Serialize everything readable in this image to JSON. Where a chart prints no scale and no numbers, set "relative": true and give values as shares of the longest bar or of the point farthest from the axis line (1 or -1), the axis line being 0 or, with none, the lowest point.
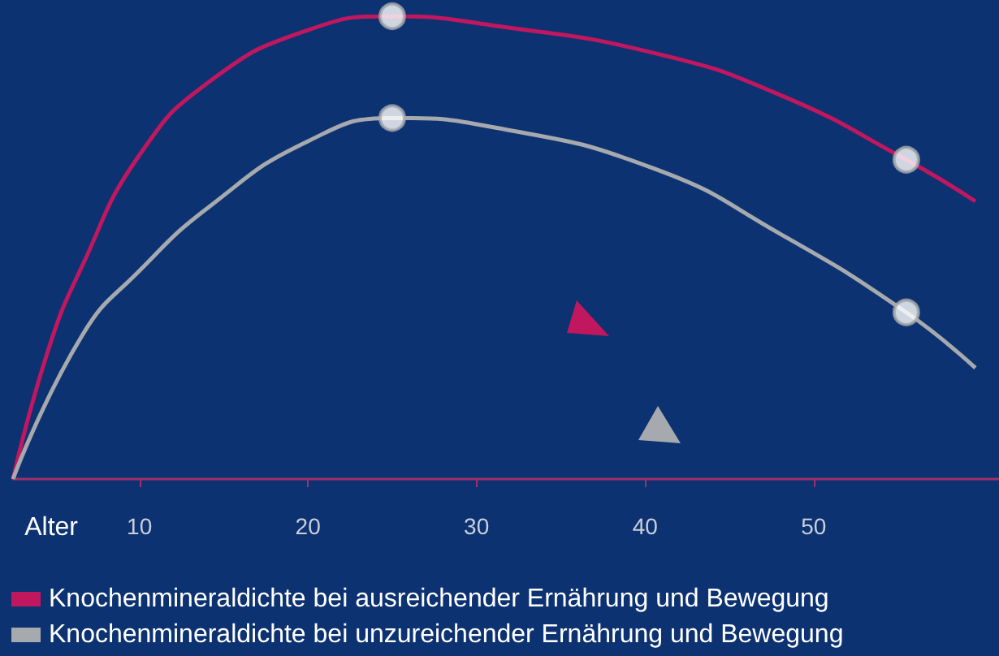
{
  "chart_data": {
    "type": "line",
    "relative": true,
    "xlabel": "Alter",
    "xlim": [
      2.5,
      61
    ],
    "xticks": [
      10,
      20,
      30,
      40,
      50
    ],
    "grid": false,
    "legend": "bottom left",
    "marker": "none",
    "series": [
      {
        "name": "Knochenmineraldichte bei ausreichender Ernährung und Bewegung",
        "color": "#c0175f",
        "x": [
          2.5,
          4.6,
          6.6,
          10,
          14.2,
          20,
          25,
          31,
          40.6,
          48,
          55.5,
          59.6
        ],
        "values": [
          0,
          0.28,
          0.46,
          0.7,
          0.86,
          0.97,
          1,
          0.98,
          0.92,
          0.83,
          0.69,
          0.6
        ]
      },
      {
        "name": "Knochenmineraldichte bei unzureichender Ernährung und Bewegung",
        "color": "#a6a9ad",
        "x": [
          2.5,
          6.6,
          10,
          14.2,
          20,
          25,
          31,
          40.6,
          48,
          55.5,
          59.6
        ],
        "values": [
          0,
          0.31,
          0.45,
          0.59,
          0.73,
          0.78,
          0.76,
          0.67,
          0.53,
          0.36,
          0.24
        ]
      },
      {
        "type": "scatter",
        "marker": "circle",
        "color": "#ffffff",
        "x": [
          25,
          55.5
        ],
        "values": [
          1,
          0.69
        ]
      },
      {
        "type": "scatter",
        "marker": "circle",
        "color": "#ffffff",
        "x": [
          25,
          55.5
        ],
        "values": [
          0.78,
          0.36
        ]
      }
    ]
  }
}
